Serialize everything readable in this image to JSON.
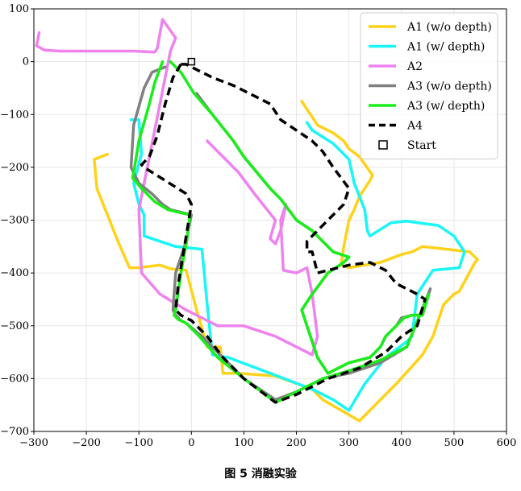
{
  "caption": "图 5 消融实验",
  "chart_data": {
    "type": "line",
    "xlim": [
      -300,
      600
    ],
    "ylim": [
      -700,
      100
    ],
    "xticks": [
      -300,
      -200,
      -100,
      0,
      100,
      200,
      300,
      400,
      500,
      600
    ],
    "yticks": [
      100,
      0,
      -100,
      -200,
      -300,
      -400,
      -500,
      -600,
      -700
    ],
    "xticklabels": [
      "−300",
      "−200",
      "−100",
      "0",
      "100",
      "200",
      "300",
      "400",
      "500",
      "600"
    ],
    "yticklabels": [
      "100",
      "0",
      "−100",
      "−200",
      "−300",
      "−400",
      "−500",
      "−600",
      "−700"
    ],
    "grid": true,
    "legend_position": "top-right",
    "start": {
      "label": "Start",
      "x": 0,
      "y": 0
    },
    "series": [
      {
        "name": "A1 (w/o depth)",
        "color": "#FFD21A",
        "dash": "solid",
        "width": 3.5,
        "x": [
          -160,
          -185,
          -180,
          -160,
          -140,
          -118,
          -100,
          -60,
          -40,
          -10,
          10,
          30,
          55,
          60,
          90,
          160,
          230,
          250,
          320,
          390,
          440,
          460,
          480,
          500,
          510,
          540,
          545,
          530,
          440,
          420,
          400,
          360,
          300,
          285,
          290,
          300,
          310,
          320,
          340,
          345,
          320,
          300,
          290,
          270,
          240,
          220,
          210
        ],
        "y": [
          -175,
          -185,
          -240,
          -290,
          -340,
          -390,
          -390,
          -385,
          -392,
          -395,
          -470,
          -540,
          -540,
          -590,
          -590,
          -595,
          -620,
          -640,
          -680,
          -610,
          -555,
          -520,
          -460,
          -440,
          -435,
          -380,
          -375,
          -360,
          -350,
          -360,
          -365,
          -380,
          -390,
          -385,
          -350,
          -300,
          -280,
          -255,
          -225,
          -215,
          -180,
          -165,
          -150,
          -135,
          -120,
          -90,
          -75
        ]
      },
      {
        "name": "A1 (w/ depth)",
        "color": "#1AF5F5",
        "dash": "solid",
        "width": 3.5,
        "x": [
          -115,
          -100,
          -95,
          -110,
          -100,
          -90,
          -90,
          -60,
          -30,
          20,
          30,
          40,
          70,
          150,
          230,
          270,
          300,
          330,
          370,
          410,
          420,
          430,
          460,
          510,
          520,
          500,
          470,
          410,
          380,
          340,
          335,
          330,
          310,
          300,
          270,
          230,
          220
        ],
        "y": [
          -110,
          -110,
          -175,
          -230,
          -270,
          -290,
          -330,
          -340,
          -350,
          -355,
          -460,
          -555,
          -560,
          -590,
          -620,
          -640,
          -660,
          -610,
          -560,
          -530,
          -520,
          -440,
          -395,
          -390,
          -360,
          -330,
          -310,
          -302,
          -305,
          -330,
          -320,
          -280,
          -230,
          -185,
          -155,
          -130,
          -115
        ]
      },
      {
        "name": "A2",
        "color": "#EE82EE",
        "dash": "solid",
        "width": 3.5,
        "x": [
          -290,
          -295,
          -280,
          -250,
          -220,
          -150,
          -130,
          -110,
          -70,
          -65,
          -55,
          -30,
          -40,
          -60,
          -100,
          -95,
          -60,
          -10,
          50,
          100,
          160,
          230,
          240,
          230,
          220,
          200,
          175,
          170,
          180,
          170,
          160,
          150,
          160,
          120,
          90,
          30
        ],
        "y": [
          55,
          30,
          22,
          20,
          20,
          20,
          20,
          20,
          18,
          25,
          80,
          45,
          20,
          -80,
          -280,
          -400,
          -440,
          -470,
          -500,
          -500,
          -520,
          -555,
          -520,
          -440,
          -390,
          -400,
          -395,
          -300,
          -270,
          -320,
          -345,
          -335,
          -300,
          -250,
          -210,
          -150
        ]
      },
      {
        "name": "A3 (w/o depth)",
        "color": "#808080",
        "dash": "solid",
        "width": 3.5,
        "x": [
          -50,
          -75,
          -90,
          -110,
          -115,
          -100,
          -75,
          -55,
          -40,
          -20,
          0,
          -10,
          -30,
          -35,
          -30,
          -20,
          -10,
          20,
          60,
          100,
          130,
          160,
          200,
          250,
          300,
          360,
          410,
          455,
          440,
          420,
          400,
          390,
          370,
          360,
          340,
          300,
          260,
          240,
          220,
          210,
          230,
          260,
          290,
          300,
          270,
          250,
          230,
          200,
          170,
          150,
          100,
          80,
          40,
          10
        ],
        "y": [
          -10,
          -20,
          -50,
          -120,
          -200,
          -230,
          -250,
          -270,
          -280,
          -285,
          -290,
          -340,
          -400,
          -470,
          -480,
          -490,
          -495,
          -520,
          -560,
          -600,
          -620,
          -640,
          -625,
          -600,
          -590,
          -570,
          -540,
          -430,
          -480,
          -480,
          -485,
          -500,
          -520,
          -540,
          -560,
          -570,
          -590,
          -560,
          -500,
          -470,
          -440,
          -400,
          -380,
          -370,
          -360,
          -340,
          -320,
          -300,
          -260,
          -240,
          -180,
          -150,
          -100,
          -60
        ]
      },
      {
        "name": "A3 (w/ depth)",
        "color": "#1AEE1A",
        "dash": "solid",
        "width": 3.5,
        "x": [
          -55,
          -70,
          -80,
          -100,
          -110,
          -112,
          -95,
          -70,
          -45,
          -25,
          -3,
          -8,
          -20,
          -30,
          -33,
          -25,
          -10,
          15,
          50,
          100,
          130,
          160,
          200,
          250,
          300,
          360,
          410,
          452,
          440,
          420,
          405,
          390,
          370,
          360,
          340,
          300,
          260,
          240,
          220,
          210,
          230,
          260,
          290,
          300,
          270,
          250,
          230,
          200,
          170,
          150,
          100,
          80,
          40,
          5,
          -20,
          -40
        ],
        "y": [
          0,
          -40,
          -80,
          -150,
          -210,
          -220,
          -240,
          -265,
          -280,
          -285,
          -290,
          -335,
          -400,
          -470,
          -480,
          -488,
          -495,
          -520,
          -560,
          -600,
          -622,
          -645,
          -625,
          -600,
          -585,
          -565,
          -540,
          -440,
          -480,
          -480,
          -485,
          -500,
          -520,
          -540,
          -560,
          -570,
          -590,
          -560,
          -500,
          -470,
          -440,
          -400,
          -380,
          -370,
          -360,
          -340,
          -320,
          -300,
          -260,
          -240,
          -180,
          -150,
          -100,
          -60,
          -20,
          0
        ]
      },
      {
        "name": "A4",
        "color": "#000000",
        "dash": "dashed",
        "width": 3.5,
        "x": [
          -20,
          -35,
          -50,
          -65,
          -80,
          -95,
          -90,
          -50,
          -10,
          0,
          -5,
          -15,
          -25,
          -30,
          -20,
          0,
          30,
          60,
          100,
          140,
          160,
          200,
          260,
          320,
          370,
          400,
          430,
          445,
          430,
          410,
          390,
          370,
          340,
          300,
          240,
          230,
          220,
          220,
          240,
          260,
          290,
          300,
          270,
          250,
          230,
          200,
          170,
          150,
          100,
          80,
          40,
          10,
          -10,
          -20
        ],
        "y": [
          -5,
          -30,
          -80,
          -140,
          -180,
          -195,
          -200,
          -225,
          -250,
          -270,
          -300,
          -360,
          -420,
          -470,
          -480,
          -490,
          -520,
          -560,
          -600,
          -630,
          -645,
          -630,
          -600,
          -580,
          -550,
          -520,
          -500,
          -450,
          -440,
          -430,
          -420,
          -395,
          -380,
          -385,
          -400,
          -360,
          -360,
          -340,
          -320,
          -300,
          -270,
          -240,
          -200,
          -170,
          -150,
          -130,
          -110,
          -80,
          -55,
          -45,
          -30,
          -15,
          -5,
          -5
        ]
      }
    ]
  }
}
